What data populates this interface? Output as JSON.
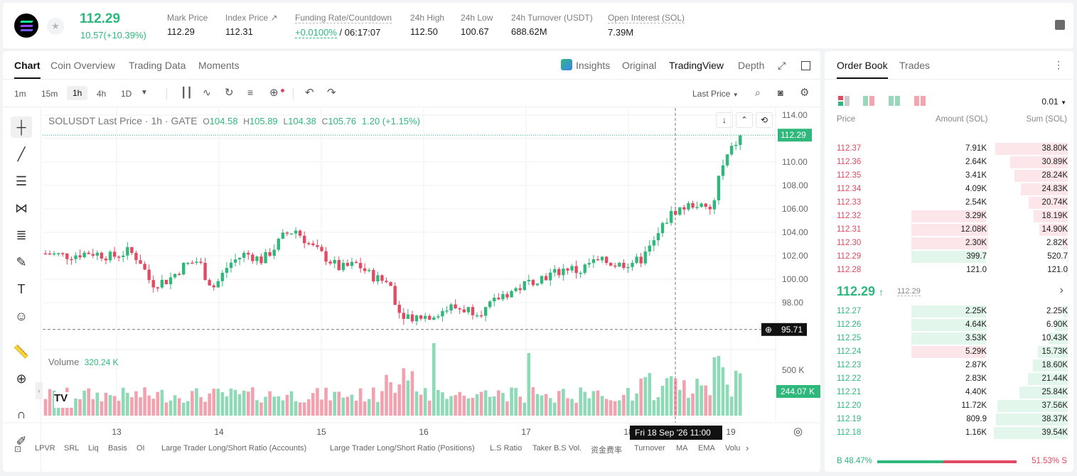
{
  "ticker": {
    "last_price": "112.29",
    "change": "10.57(+10.39%)"
  },
  "stats": [
    {
      "label": "Mark Price",
      "value": "112.29"
    },
    {
      "label": "Index Price ↗",
      "value": "112.31"
    },
    {
      "label": "Funding Rate/Countdown",
      "value_green": "+0.0100%",
      "value": " / 06:17:07"
    },
    {
      "label": "24h High",
      "value": "112.50"
    },
    {
      "label": "24h Low",
      "value": "100.67"
    },
    {
      "label": "24h Turnover (USDT)",
      "value": "688.62M"
    },
    {
      "label": "Open Interest (SOL)",
      "value": "7.39M"
    }
  ],
  "chart_tabs": [
    "Chart",
    "Coin Overview",
    "Trading Data",
    "Moments"
  ],
  "chart_view_tabs": {
    "insights": "Insights",
    "original": "Original",
    "tradingview": "TradingView",
    "depth": "Depth"
  },
  "timeframes": [
    "1m",
    "15m",
    "1h",
    "4h",
    "1D"
  ],
  "price_type": "Last Price",
  "legend": {
    "symbol": "SOLUSDT Last Price · 1h · GATE",
    "o_label": "O",
    "o": "104.58",
    "h_label": "H",
    "h": "105.89",
    "l_label": "L",
    "l": "104.38",
    "c_label": "C",
    "c": "105.76",
    "change": "1.20 (+1.15%)"
  },
  "volume_legend": {
    "label": "Volume",
    "value": "320.24 K"
  },
  "crosshair": {
    "label": "Fri 18 Sep '26   11:00"
  },
  "price_marks": {
    "last": "112.29",
    "cursor": "95.71",
    "volume_last": "244.07 K"
  },
  "bottom_indicators": [
    "LPVR",
    "SRL",
    "Liq",
    "Basis",
    "OI",
    "Large Trader Long/Short Ratio (Accounts)",
    "Large Trader Long/Short Ratio (Positions)",
    "L.S Ratio",
    "Taker B.S Vol.",
    "资金费率",
    "Turnover",
    "MA",
    "EMA",
    "Volu"
  ],
  "chart_data": {
    "type": "candlestick",
    "price_axis": [
      "114.00",
      "112.00",
      "110.00",
      "108.00",
      "106.00",
      "104.00",
      "102.00",
      "100.00",
      "98.00"
    ],
    "volume_axis": [
      "500 K"
    ],
    "x_ticks": [
      "13",
      "14",
      "15",
      "16",
      "17",
      "18",
      "19"
    ]
  },
  "orderbook": {
    "tabs": [
      "Order Book",
      "Trades"
    ],
    "precision": "0.01",
    "headers": {
      "price": "Price",
      "amount": "Amount (SOL)",
      "sum": "Sum (SOL)"
    },
    "asks": [
      {
        "price": "112.37",
        "amount": "7.91K",
        "sum": "38.80K",
        "sumf": 0.98,
        "amtf": 0
      },
      {
        "price": "112.36",
        "amount": "2.64K",
        "sum": "30.89K",
        "sumf": 0.78,
        "amtf": 0
      },
      {
        "price": "112.35",
        "amount": "3.41K",
        "sum": "28.24K",
        "sumf": 0.72,
        "amtf": 0
      },
      {
        "price": "112.34",
        "amount": "4.09K",
        "sum": "24.83K",
        "sumf": 0.63,
        "amtf": 0
      },
      {
        "price": "112.33",
        "amount": "2.54K",
        "sum": "20.74K",
        "sumf": 0.53,
        "amtf": 0
      },
      {
        "price": "112.32",
        "amount": "3.29K",
        "sum": "18.19K",
        "sumf": 0.46,
        "amtf": 0.35
      },
      {
        "price": "112.31",
        "amount": "12.08K",
        "sum": "14.90K",
        "sumf": 0.38,
        "amtf": 0.48
      },
      {
        "price": "112.30",
        "amount": "2.30K",
        "sum": "2.82K",
        "sumf": 0.07,
        "amtf": 0.42
      },
      {
        "price": "112.29",
        "amount": "399.7",
        "sum": "520.7",
        "sumf": 0.01,
        "amtf": 0.35,
        "green": true
      },
      {
        "price": "112.28",
        "amount": "121.0",
        "sum": "121.0",
        "sumf": 0.005,
        "amtf": 0
      }
    ],
    "mid": {
      "price": "112.29",
      "arrow": "↑",
      "mark": "112.29"
    },
    "bids": [
      {
        "price": "112.27",
        "amount": "2.25K",
        "sum": "2.25K",
        "sumf": 0.06,
        "amtf": 0.35
      },
      {
        "price": "112.26",
        "amount": "4.64K",
        "sum": "6.90K",
        "sumf": 0.17,
        "amtf": 0.35
      },
      {
        "price": "112.25",
        "amount": "3.53K",
        "sum": "10.43K",
        "sumf": 0.26,
        "amtf": 0.35
      },
      {
        "price": "112.24",
        "amount": "5.29K",
        "sum": "15.73K",
        "sumf": 0.4,
        "amtf": 0.35,
        "red": true
      },
      {
        "price": "112.23",
        "amount": "2.87K",
        "sum": "18.60K",
        "sumf": 0.47,
        "amtf": 0
      },
      {
        "price": "112.22",
        "amount": "2.83K",
        "sum": "21.44K",
        "sumf": 0.54,
        "amtf": 0
      },
      {
        "price": "112.21",
        "amount": "4.40K",
        "sum": "25.84K",
        "sumf": 0.65,
        "amtf": 0
      },
      {
        "price": "112.20",
        "amount": "11.72K",
        "sum": "37.56K",
        "sumf": 0.95,
        "amtf": 0
      },
      {
        "price": "112.19",
        "amount": "809.9",
        "sum": "38.37K",
        "sumf": 0.97,
        "amtf": 0
      },
      {
        "price": "112.18",
        "amount": "1.16K",
        "sum": "39.54K",
        "sumf": 1.0,
        "amtf": 0
      }
    ],
    "ratio": {
      "buy": "B 48.47%",
      "sell": "51.53% S",
      "buy_pct": 48.47
    }
  },
  "colors": {
    "up": "#2fb87c",
    "down": "#e14a61",
    "up_bar": "#8ed9b6",
    "down_bar": "#f2a2ae"
  }
}
